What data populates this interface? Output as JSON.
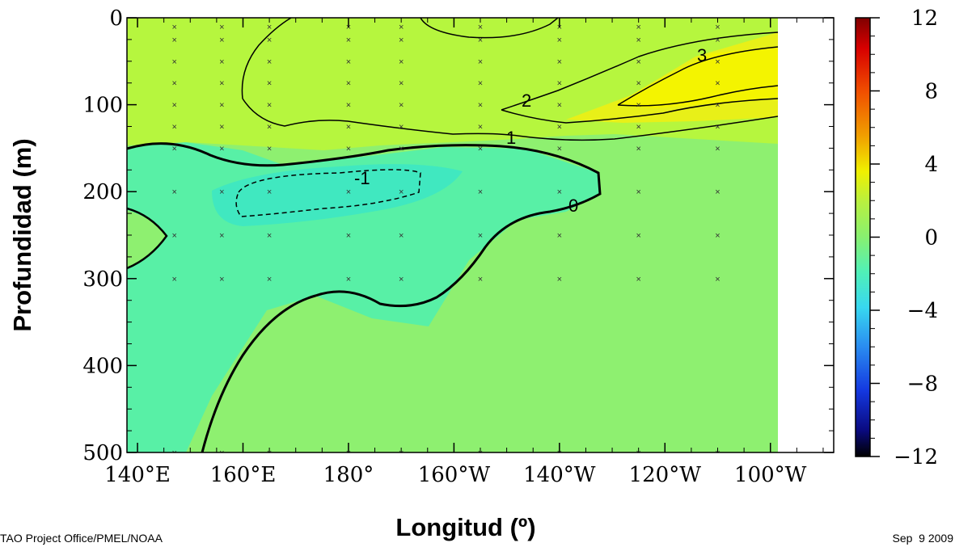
{
  "chart_data": {
    "type": "heatmap",
    "title": "",
    "xlabel": "Longitud (º)",
    "ylabel": "Profundidad (m)",
    "x_tick_labels": [
      "140°E",
      "160°E",
      "180°",
      "160°W",
      "140°W",
      "120°W",
      "100°W"
    ],
    "x_ticks_deg_east": [
      140,
      160,
      180,
      200,
      220,
      240,
      260
    ],
    "y_tick_labels": [
      "0",
      "100",
      "200",
      "300",
      "400",
      "500"
    ],
    "y_ticks": [
      0,
      100,
      200,
      300,
      400,
      500
    ],
    "xlim": [
      138,
      272
    ],
    "ylim": [
      0,
      500
    ],
    "y_inverted": true,
    "colorbar": {
      "tick_labels": [
        "12",
        "8",
        "4",
        "0",
        "−4",
        "−8",
        "−12"
      ],
      "ticks": [
        12,
        8,
        4,
        0,
        -4,
        -8,
        -12
      ],
      "range": [
        -12,
        12
      ],
      "colors": [
        "#000000",
        "#0a0a80",
        "#1438e0",
        "#2a8cf0",
        "#38d8f0",
        "#50f0b8",
        "#88f070",
        "#b8f040",
        "#f0f000",
        "#f0a000",
        "#f05000",
        "#e01000",
        "#800000"
      ]
    },
    "contour_labels": [
      "3",
      "2",
      "1",
      "0",
      "-1"
    ],
    "stations_lon_deg_east": [
      137,
      147,
      156,
      165,
      180,
      190,
      205,
      220,
      235,
      250
    ],
    "stations_depth": [
      10,
      25,
      50,
      75,
      100,
      125,
      150,
      200,
      250,
      300,
      500
    ]
  },
  "footer": {
    "source": "TAO Project Office/PMEL/NOAA",
    "date": "Sep  9 2009"
  }
}
